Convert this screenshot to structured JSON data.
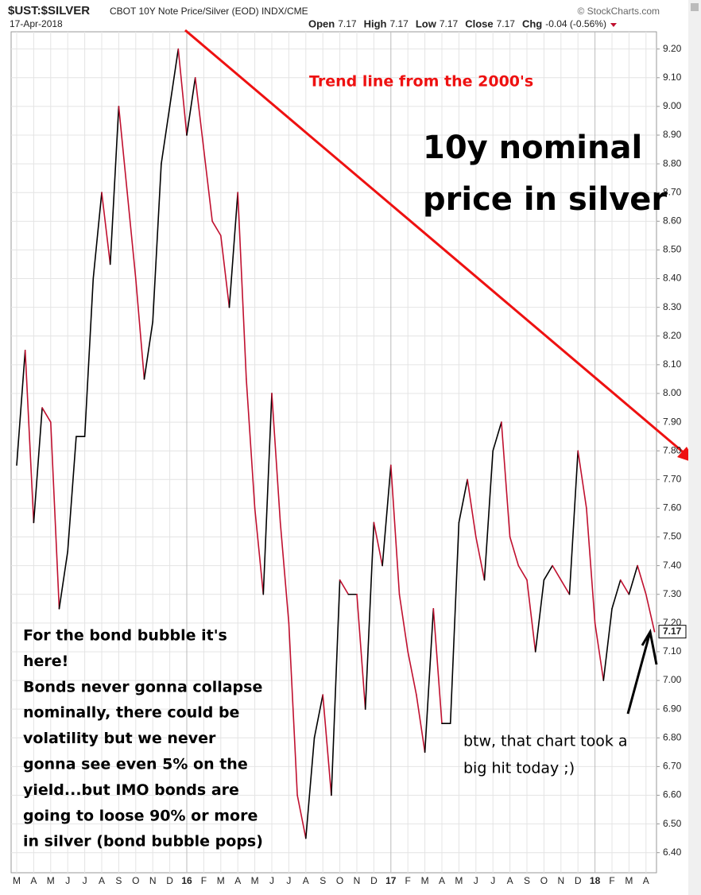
{
  "chart_data": {
    "type": "line",
    "symbol": "$UST:$SILVER",
    "title": "CBOT 10Y Note Price/Silver (EOD) INDX/CME",
    "source": "© StockCharts.com",
    "date": "17-Apr-2018",
    "quote": [
      {
        "label": "Open",
        "value": "7.17"
      },
      {
        "label": "High",
        "value": "7.17"
      },
      {
        "label": "Low",
        "value": "7.17"
      },
      {
        "label": "Close",
        "value": "7.17"
      },
      {
        "label": "Chg",
        "value": "-0.04 (-0.56%)"
      }
    ],
    "annotations": {
      "trend": "Trend line from the 2000's",
      "headline": [
        "10y nominal",
        "price in silver"
      ],
      "comment": [
        "For the bond bubble it's",
        "here!",
        "Bonds never gonna collapse",
        "nominally, there could be",
        "volatility but we never",
        "gonna see even 5% on the",
        "yield...but IMO bonds are",
        "going to loose 90% or more",
        "in silver (bond bubble pops)"
      ],
      "note": [
        "btw, that chart took a",
        "big hit today ;)"
      ]
    },
    "categories": [
      "M",
      null,
      "A",
      null,
      "M",
      null,
      "J",
      null,
      "J",
      null,
      "A",
      null,
      "S",
      null,
      "O",
      null,
      "N",
      null,
      "D",
      null,
      "16",
      null,
      "F",
      null,
      "M",
      null,
      "A",
      null,
      "M",
      null,
      "J",
      null,
      "J",
      null,
      "A",
      null,
      "S",
      null,
      "O",
      null,
      "N",
      null,
      "D",
      null,
      "17",
      null,
      "F",
      null,
      "M",
      null,
      "A",
      null,
      "M",
      null,
      "J",
      null,
      "J",
      null,
      "A",
      null,
      "S",
      null,
      "O",
      null,
      "N",
      null,
      "D",
      null,
      "18",
      null,
      "F",
      null,
      "M",
      null,
      "A",
      null
    ],
    "values": [
      7.75,
      8.15,
      7.55,
      7.95,
      7.9,
      7.25,
      7.45,
      7.85,
      7.85,
      8.4,
      8.7,
      8.45,
      9.0,
      8.7,
      8.4,
      8.05,
      8.25,
      8.8,
      9.0,
      9.2,
      8.9,
      9.1,
      8.85,
      8.6,
      8.55,
      8.3,
      8.7,
      8.05,
      7.6,
      7.3,
      8.0,
      7.55,
      7.2,
      6.6,
      6.45,
      6.8,
      6.95,
      6.6,
      7.35,
      7.3,
      7.3,
      6.9,
      7.55,
      7.4,
      7.75,
      7.3,
      7.1,
      6.95,
      6.75,
      7.25,
      6.85,
      6.85,
      7.55,
      7.7,
      7.5,
      7.35,
      7.8,
      7.9,
      7.5,
      7.4,
      7.35,
      7.1,
      7.35,
      7.4,
      7.35,
      7.3,
      7.8,
      7.6,
      7.2,
      7.0,
      7.25,
      7.35,
      7.3,
      7.4,
      7.3,
      7.17
    ],
    "up_color": "#000000",
    "down_color": "#c0102f",
    "ylim": [
      6.33,
      9.26
    ],
    "yticks": [
      {
        "value": 6.4,
        "label": "6.40"
      },
      {
        "value": 6.5,
        "label": "6.50"
      },
      {
        "value": 6.6,
        "label": "6.60"
      },
      {
        "value": 6.7,
        "label": "6.70"
      },
      {
        "value": 6.8,
        "label": "6.80"
      },
      {
        "value": 6.9,
        "label": "6.90"
      },
      {
        "value": 7.0,
        "label": "7.00"
      },
      {
        "value": 7.1,
        "label": "7.10"
      },
      {
        "value": 7.2,
        "label": "7.20"
      },
      {
        "value": 7.3,
        "label": "7.30"
      },
      {
        "value": 7.4,
        "label": "7.40"
      },
      {
        "value": 7.5,
        "label": "7.50"
      },
      {
        "value": 7.6,
        "label": "7.60"
      },
      {
        "value": 7.7,
        "label": "7.70"
      },
      {
        "value": 7.8,
        "label": "7.80"
      },
      {
        "value": 7.9,
        "label": "7.90"
      },
      {
        "value": 8.0,
        "label": "8.00"
      },
      {
        "value": 8.1,
        "label": "8.10"
      },
      {
        "value": 8.2,
        "label": "8.20"
      },
      {
        "value": 8.3,
        "label": "8.30"
      },
      {
        "value": 8.4,
        "label": "8.40"
      },
      {
        "value": 8.5,
        "label": "8.50"
      },
      {
        "value": 8.6,
        "label": "8.60"
      },
      {
        "value": 8.7,
        "label": "8.70"
      },
      {
        "value": 8.8,
        "label": "8.80"
      },
      {
        "value": 8.9,
        "label": "8.90"
      },
      {
        "value": 9.0,
        "label": "9.00"
      },
      {
        "value": 9.1,
        "label": "9.10"
      },
      {
        "value": 9.2,
        "label": "9.20"
      }
    ],
    "grid": true
  }
}
